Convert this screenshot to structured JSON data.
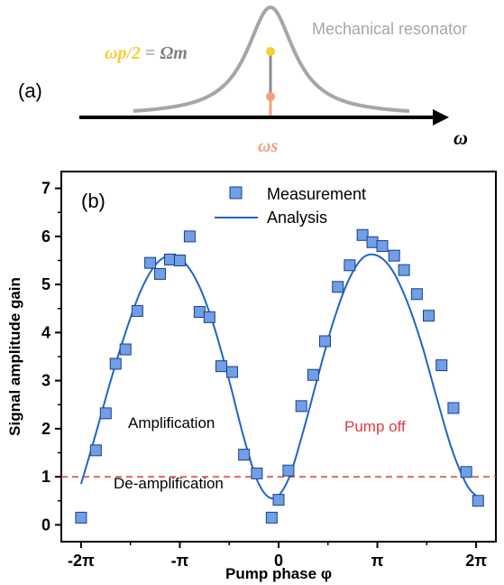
{
  "panel_a": {
    "panel_label": "(a)",
    "resonator_label": "Mechanical resonator",
    "pump_eq_lhs": "ωp/2",
    "pump_eq_eq": " = ",
    "pump_eq_rhs": "Ωm",
    "signal_label": "ωs",
    "axis_label": "ω",
    "colors": {
      "resonance": "#a6a6a6",
      "pump": "#f5d033",
      "signal": "#f0a07a",
      "stem": "#8c8c8c",
      "axis": "#000000"
    }
  },
  "chart_data": {
    "type": "scatter",
    "panel_label": "(b)",
    "xlabel": "Pump phase φ",
    "ylabel": "Signal amplitude gain",
    "xlim": [
      -2.2,
      2.2
    ],
    "ylim": [
      -0.35,
      7.35
    ],
    "x_unit": "π rad",
    "x_ticks": [
      -2,
      -1,
      0,
      1,
      2
    ],
    "x_tick_labels": [
      "-2π",
      "-π",
      "0",
      "π",
      "2π"
    ],
    "y_ticks": [
      0,
      1,
      2,
      3,
      4,
      5,
      6,
      7
    ],
    "y_tick_labels": [
      "0",
      "1",
      "2",
      "3",
      "4",
      "5",
      "6",
      "7"
    ],
    "legend": {
      "position": "top-center",
      "entries": [
        {
          "label": "Measurement",
          "marker": "square",
          "color": "#6f9fe6"
        },
        {
          "label": "Analysis",
          "marker": "line",
          "color": "#1f64c8"
        }
      ]
    },
    "series": [
      {
        "name": "Measurement",
        "marker": "square",
        "color": "#6f9fe6",
        "edge": "#1a3f8a",
        "points": [
          {
            "x": -2.0,
            "y": 0.15
          },
          {
            "x": -1.85,
            "y": 1.55
          },
          {
            "x": -1.75,
            "y": 2.32
          },
          {
            "x": -1.65,
            "y": 3.35
          },
          {
            "x": -1.55,
            "y": 3.65
          },
          {
            "x": -1.43,
            "y": 4.45
          },
          {
            "x": -1.3,
            "y": 5.45
          },
          {
            "x": -1.2,
            "y": 5.22
          },
          {
            "x": -1.1,
            "y": 5.52
          },
          {
            "x": -1.0,
            "y": 5.5
          },
          {
            "x": -0.9,
            "y": 6.0
          },
          {
            "x": -0.8,
            "y": 4.43
          },
          {
            "x": -0.7,
            "y": 4.32
          },
          {
            "x": -0.58,
            "y": 3.3
          },
          {
            "x": -0.47,
            "y": 3.18
          },
          {
            "x": -0.35,
            "y": 1.46
          },
          {
            "x": -0.22,
            "y": 1.07
          },
          {
            "x": -0.07,
            "y": 0.15
          },
          {
            "x": 0.0,
            "y": 0.52
          },
          {
            "x": 0.1,
            "y": 1.13
          },
          {
            "x": 0.23,
            "y": 2.47
          },
          {
            "x": 0.35,
            "y": 3.12
          },
          {
            "x": 0.47,
            "y": 3.82
          },
          {
            "x": 0.6,
            "y": 4.95
          },
          {
            "x": 0.72,
            "y": 5.4
          },
          {
            "x": 0.85,
            "y": 6.03
          },
          {
            "x": 0.95,
            "y": 5.88
          },
          {
            "x": 1.05,
            "y": 5.8
          },
          {
            "x": 1.17,
            "y": 5.6
          },
          {
            "x": 1.27,
            "y": 5.3
          },
          {
            "x": 1.4,
            "y": 4.8
          },
          {
            "x": 1.52,
            "y": 4.35
          },
          {
            "x": 1.65,
            "y": 3.32
          },
          {
            "x": 1.77,
            "y": 2.43
          },
          {
            "x": 1.9,
            "y": 1.1
          },
          {
            "x": 2.02,
            "y": 0.5
          }
        ]
      },
      {
        "name": "Analysis",
        "style": "line",
        "color": "#1f64c8",
        "x": [
          -2.0,
          -1.85,
          -1.7,
          -1.55,
          -1.4,
          -1.25,
          -1.1,
          -0.95,
          -0.8,
          -0.65,
          -0.5,
          -0.35,
          -0.2,
          -0.05,
          0.1,
          0.25,
          0.4,
          0.55,
          0.7,
          0.85,
          1.0,
          1.15,
          1.3,
          1.45,
          1.6,
          1.75,
          1.9,
          2.0
        ],
        "y": [
          0.85,
          1.9,
          3.0,
          4.0,
          4.85,
          5.4,
          5.6,
          5.45,
          4.95,
          4.1,
          3.0,
          1.8,
          0.85,
          0.55,
          0.95,
          1.95,
          3.1,
          4.2,
          5.05,
          5.55,
          5.6,
          5.3,
          4.65,
          3.75,
          2.65,
          1.6,
          0.85,
          0.6
        ]
      }
    ],
    "reference_line": {
      "y": 1.0,
      "style": "dashed",
      "color": "#e03b3b",
      "label": "Pump off"
    },
    "annotations": [
      {
        "text": "Amplification",
        "x": -1.5,
        "y": 1.75
      },
      {
        "text": "De-amplification",
        "x": -1.3,
        "y": 0.3
      }
    ]
  }
}
